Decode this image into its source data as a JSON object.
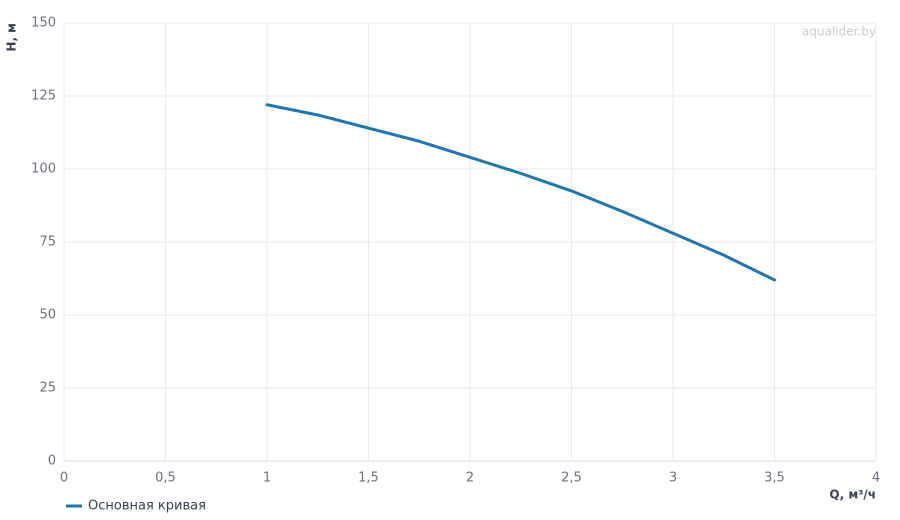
{
  "chart_data": {
    "type": "line",
    "watermark": "aqualider.by",
    "x_label": "Q, м³/ч",
    "y_label": "H, м",
    "x": [
      1,
      1.25,
      1.5,
      1.75,
      2,
      2.25,
      2.5,
      2.75,
      3,
      3.25,
      3.5
    ],
    "series": [
      {
        "name": "Основная кривая",
        "color": "#2176ae",
        "values": [
          122,
          118.5,
          114,
          109.5,
          104,
          98.5,
          92.5,
          85.5,
          78,
          70.5,
          62
        ]
      }
    ],
    "xlim": [
      0,
      4
    ],
    "xticks": [
      0,
      {
        "value": 0.5,
        "label": "0,5"
      },
      1,
      {
        "value": 1.5,
        "label": "1,5"
      },
      2,
      {
        "value": 2.5,
        "label": "2,5"
      },
      3,
      {
        "value": 3.5,
        "label": "3,5"
      },
      4
    ],
    "ylim": [
      0,
      150
    ],
    "yticks": [
      0,
      25,
      50,
      75,
      100,
      125,
      150
    ],
    "grid": true,
    "legend": "bottom-left"
  }
}
